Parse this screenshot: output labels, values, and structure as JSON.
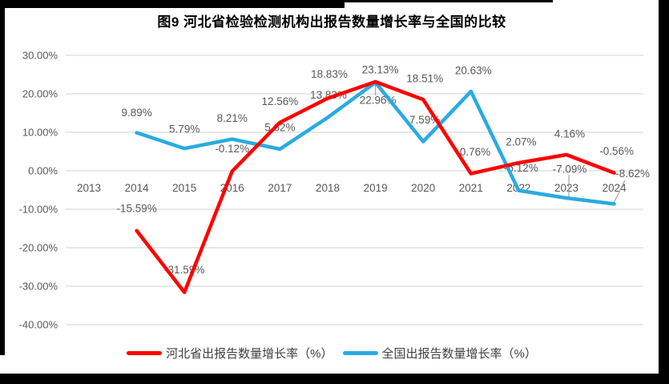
{
  "title": "图9 河北省检验检测机构出报告数量增长率与全国的比较",
  "colors": {
    "hebei_line": "#FF0000",
    "national_line": "#29ABE2",
    "gridline": "#D9D9D9",
    "axis_label": "#595959",
    "data_label": "#595959",
    "leader_line": "#A6A6A6",
    "legend_text": "#404040",
    "frame": "#000000"
  },
  "chart_data": {
    "type": "line",
    "title": "图9 河北省检验检测机构出报告数量增长率与全国的比较",
    "categories": [
      "2013",
      "2014",
      "2015",
      "2016",
      "2017",
      "2018",
      "2019",
      "2020",
      "2021",
      "2022",
      "2023",
      "2024"
    ],
    "series": [
      {
        "name": "河北省出报告数量增长率（%）",
        "color": "#FF0000",
        "start_category": "2014",
        "values": [
          -15.59,
          -31.59,
          -0.12,
          12.56,
          18.83,
          23.13,
          18.51,
          -0.76,
          2.07,
          4.16,
          -0.56
        ],
        "labels": [
          "-15.59%",
          "-31.59%",
          "-0.12%",
          "12.56%",
          "18.83%",
          "23.13%",
          "18.51%",
          "-0.76%",
          "2.07%",
          "4.16%",
          "-0.56%"
        ]
      },
      {
        "name": "全国出报告数量增长率（%）",
        "color": "#29ABE2",
        "start_category": "2014",
        "values": [
          9.89,
          5.79,
          8.21,
          5.62,
          13.83,
          22.96,
          7.59,
          20.63,
          -5.12,
          -7.09,
          -8.62
        ],
        "labels": [
          "9.89%",
          "5.79%",
          "8.21%",
          "5.62%",
          "13.83%",
          "22.96%",
          "7.59%",
          "20.63%",
          "-5.12%",
          "-7.09%",
          "-8.62%"
        ]
      }
    ],
    "y_axis": {
      "tick_labels": [
        "30.00%",
        "20.00%",
        "10.00%",
        "0.00%",
        "-10.00%",
        "-20.00%",
        "-30.00%",
        "-40.00%"
      ],
      "tick_values": [
        30,
        20,
        10,
        0,
        -10,
        -20,
        -30,
        -40
      ]
    },
    "ylim": [
      -40,
      30
    ],
    "grid": true,
    "data_labels": true,
    "legend_position": "bottom"
  },
  "legend": {
    "items": [
      {
        "label": "河北省出报告数量增长率（%）"
      },
      {
        "label": "全国出报告数量增长率（%）"
      }
    ]
  }
}
